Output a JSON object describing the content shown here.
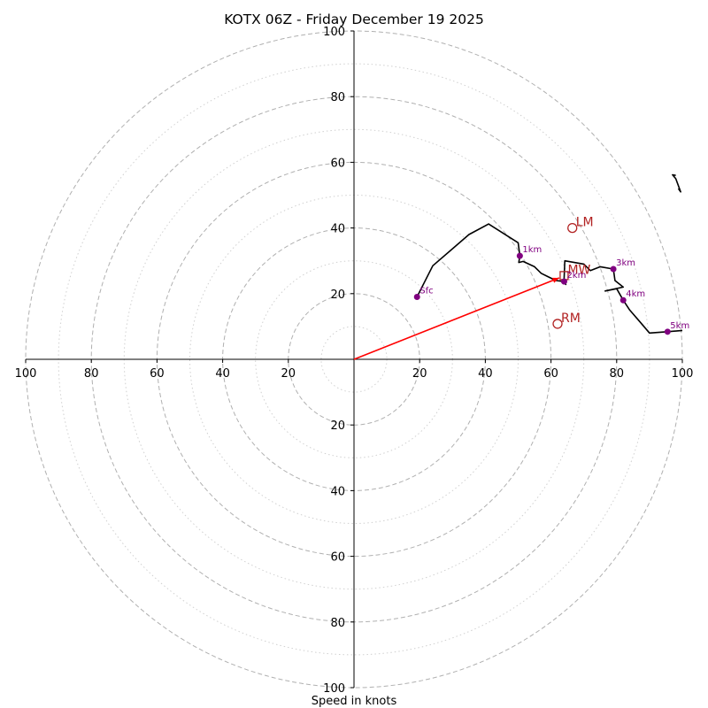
{
  "chart_data": {
    "type": "hodograph",
    "title": "KOTX 06Z - Friday December 19 2025",
    "xlabel": "Speed in knots",
    "range": [
      -100,
      100
    ],
    "major_rings": [
      20,
      40,
      60,
      80,
      100
    ],
    "minor_rings": [
      10,
      30,
      50,
      70,
      90
    ],
    "ticks": [
      20,
      40,
      60,
      80,
      100
    ],
    "tick_labels": [
      "20",
      "40",
      "60",
      "80",
      "100"
    ],
    "hodograph_trace": [
      [
        19.2,
        19.0
      ],
      [
        24.0,
        28.5
      ],
      [
        35.0,
        38.0
      ],
      [
        41.0,
        41.2
      ],
      [
        50.0,
        35.5
      ],
      [
        50.5,
        31.5
      ],
      [
        50.2,
        29.5
      ],
      [
        51.5,
        29.8
      ],
      [
        55.0,
        28.2
      ],
      [
        57.0,
        26.2
      ],
      [
        59.0,
        25.2
      ],
      [
        61.5,
        24.0
      ],
      [
        64.0,
        23.7
      ],
      [
        64.5,
        22.8
      ],
      [
        64.0,
        24.5
      ],
      [
        64.2,
        30.0
      ],
      [
        70.0,
        29.0
      ],
      [
        72.0,
        27.0
      ],
      [
        75.0,
        28.2
      ],
      [
        79.0,
        27.5
      ],
      [
        79.5,
        24.0
      ],
      [
        82.0,
        22.0
      ],
      [
        76.5,
        20.8
      ],
      [
        80.0,
        21.5
      ],
      [
        82.0,
        18.0
      ],
      [
        84.0,
        15.0
      ],
      [
        87.0,
        11.5
      ],
      [
        90.0,
        8.0
      ],
      [
        95.5,
        8.4
      ],
      [
        100.0,
        8.8
      ]
    ],
    "upper_trace": [
      [
        98.8,
        52.0
      ],
      [
        99.5,
        51.0
      ],
      [
        98.0,
        55.0
      ],
      [
        97.0,
        56.2
      ],
      [
        98.0,
        56.0
      ]
    ],
    "height_markers": [
      {
        "label": "Sfc",
        "u": 19.2,
        "v": 19.0
      },
      {
        "label": "1km",
        "u": 50.5,
        "v": 31.5
      },
      {
        "label": "2km",
        "u": 64.0,
        "v": 23.7
      },
      {
        "label": "3km",
        "u": 79.0,
        "v": 27.5
      },
      {
        "label": "4km",
        "u": 82.0,
        "v": 18.0
      },
      {
        "label": "5km",
        "u": 95.5,
        "v": 8.4
      }
    ],
    "motion_markers": [
      {
        "label": "LM",
        "u": 66.5,
        "v": 40.0
      },
      {
        "label": "MW",
        "u": 64.0,
        "v": 25.5
      },
      {
        "label": "RM",
        "u": 62.0,
        "v": 10.8
      }
    ],
    "storm_motion_vector": {
      "u": 62.5,
      "v": 24.8
    },
    "colors": {
      "trace": "#000000",
      "height_marker": "#800080",
      "motion_marker": "#b22222",
      "vector": "#ff0000",
      "grid": "#b0b0b0",
      "minor_grid": "#d0d0d0"
    }
  }
}
